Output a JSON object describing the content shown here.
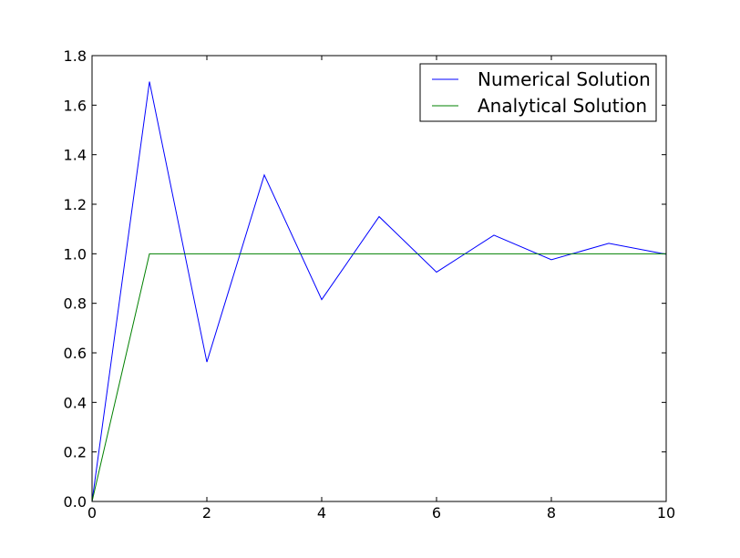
{
  "chart_data": {
    "type": "line",
    "title": "",
    "xlabel": "",
    "ylabel": "",
    "xlim": [
      0,
      10
    ],
    "ylim": [
      0.0,
      1.8
    ],
    "x_ticks": [
      0,
      2,
      4,
      6,
      8,
      10
    ],
    "y_ticks": [
      0.0,
      0.2,
      0.4,
      0.6,
      0.8,
      1.0,
      1.2,
      1.4,
      1.6,
      1.8
    ],
    "x_tick_labels": [
      "0",
      "2",
      "4",
      "6",
      "8",
      "10"
    ],
    "y_tick_labels": [
      "0.0",
      "0.2",
      "0.4",
      "0.6",
      "0.8",
      "1.0",
      "1.2",
      "1.4",
      "1.6",
      "1.8"
    ],
    "grid": false,
    "legend": {
      "placement": "top-right",
      "entries": [
        "Numerical Solution",
        "Analytical Solution"
      ]
    },
    "series": [
      {
        "name": "Numerical Solution",
        "color": "#0000ff",
        "x": [
          0,
          1,
          2,
          3,
          4,
          5,
          6,
          7,
          8,
          9,
          10
        ],
        "y": [
          0.0,
          1.695,
          0.563,
          1.318,
          0.815,
          1.15,
          0.926,
          1.075,
          0.976,
          1.042,
          0.998
        ]
      },
      {
        "name": "Analytical Solution",
        "color": "#008000",
        "x": [
          0,
          1,
          2,
          3,
          4,
          5,
          6,
          7,
          8,
          9,
          10
        ],
        "y": [
          0.0,
          1.0,
          1.0,
          1.0,
          1.0,
          1.0,
          1.0,
          1.0,
          1.0,
          1.0,
          1.0
        ]
      }
    ]
  }
}
